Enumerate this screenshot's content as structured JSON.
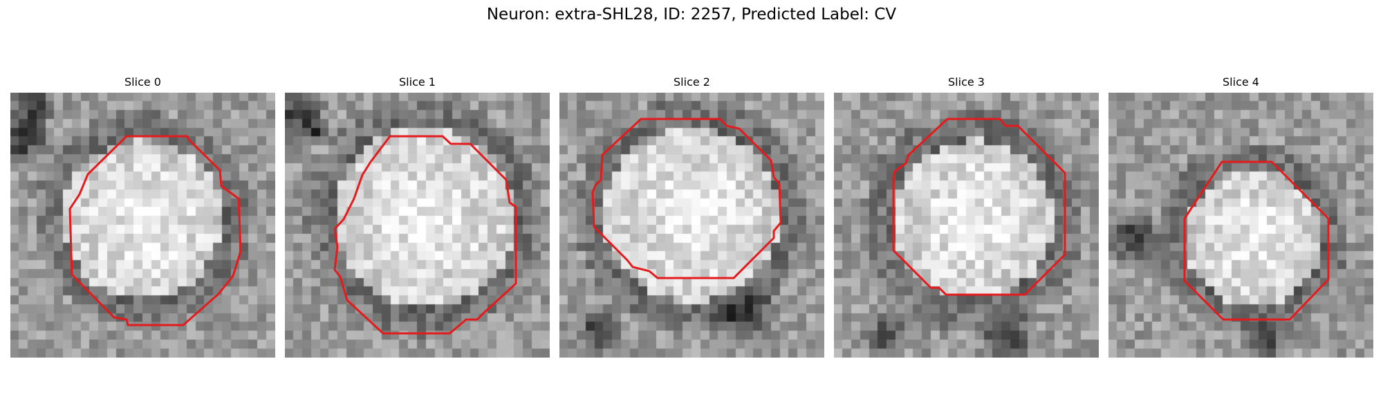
{
  "figure": {
    "title": "Neuron: extra-SHL28, ID: 2257, Predicted Label: CV"
  },
  "slices": [
    {
      "title": "Slice 0"
    },
    {
      "title": "Slice 1"
    },
    {
      "title": "Slice 2"
    },
    {
      "title": "Slice 3"
    },
    {
      "title": "Slice 4"
    }
  ],
  "colors": {
    "contour": "#e41a1c",
    "background": "#ffffff"
  }
}
